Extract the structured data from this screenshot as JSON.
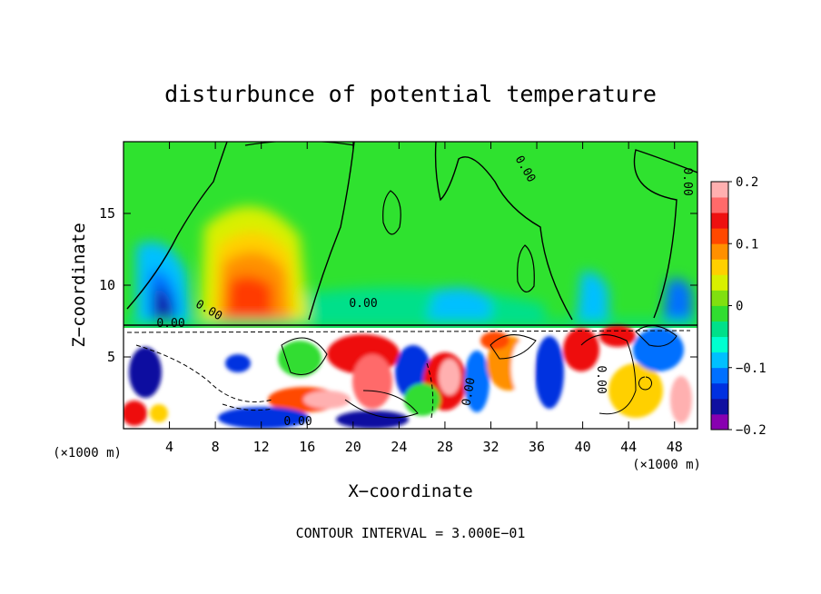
{
  "chart_data": {
    "type": "heatmap",
    "title": "disturbunce of potential temperature",
    "xlabel": "X−coordinate",
    "ylabel": "Z−coordinate",
    "x_unit": "(×1000 m)",
    "y_unit": "(×1000 m)",
    "xlim": [
      0,
      50
    ],
    "ylim": [
      0,
      20
    ],
    "x_ticks": [
      4,
      8,
      12,
      16,
      20,
      24,
      28,
      32,
      36,
      40,
      44,
      48
    ],
    "y_ticks": [
      5,
      10,
      15
    ],
    "colorbar": {
      "min": -0.2,
      "max": 0.2,
      "ticks": [
        "0.2",
        "0.1",
        "0",
        "−0.1",
        "−0.2"
      ],
      "colors": [
        "#8800b0",
        "#1010a0",
        "#0030e0",
        "#0070ff",
        "#00c0ff",
        "#00ffd0",
        "#00e08a",
        "#30dd30",
        "#80e010",
        "#d8f000",
        "#ffd000",
        "#ff9000",
        "#ff4800",
        "#ee1010",
        "#ff6a6a",
        "#ffb0b0"
      ]
    },
    "contour_labels": [
      "0.00",
      "0.00",
      "0.00",
      "0.00",
      "0.00",
      "0.00",
      "0.00",
      "0.00"
    ],
    "footnote": "CONTOUR INTERVAL = 3.000E−01",
    "fields": {
      "upper_background": 0.0,
      "warm_anomaly": {
        "x": 11,
        "z": 10.5,
        "peak": 0.16
      },
      "cold_anomaly": {
        "x": 4.5,
        "z": 10,
        "peak": -0.12
      },
      "weak_cold_band_z": 8.2,
      "lower_turbulent_layer_top_z": 7.3
    }
  }
}
